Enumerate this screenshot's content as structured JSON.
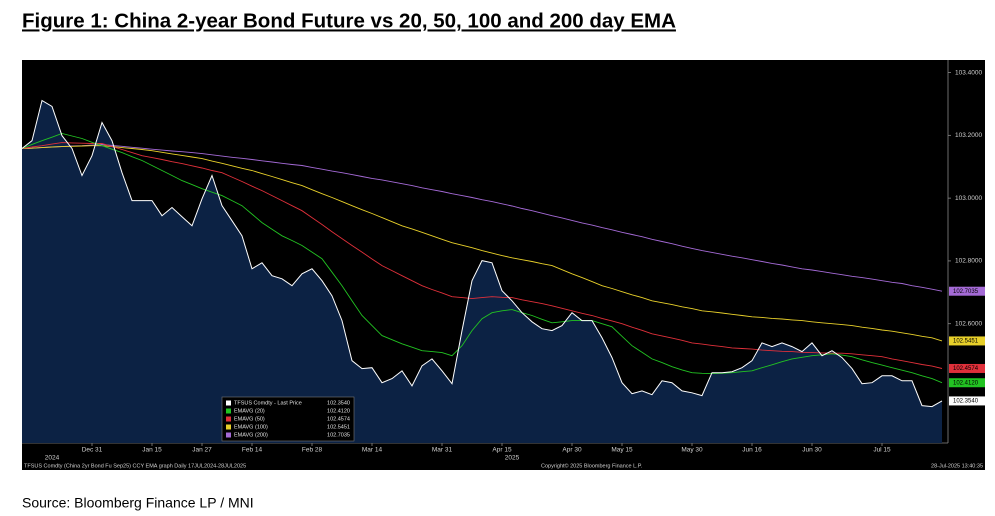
{
  "chart_data": {
    "type": "line",
    "title": "Figure 1:  China 2-year Bond Future vs 20, 50, 100 and 200 day EMA",
    "footer_left": "TFSUS Comdty (China 2yr Bond Fu Sep25) CCY EMA graph  Daily 17JUL2024-28JUL2025",
    "footer_center": "Copyright© 2025 Bloomberg Finance L.P.",
    "footer_right": "28-Jul-2025 13:40:35",
    "source": "Source: Bloomberg Finance LP / MNI",
    "year_labels": [
      "2024",
      "2025"
    ],
    "legend": "lower-left",
    "categories": [
      null,
      null,
      null,
      null,
      null,
      null,
      null,
      "Dec 31",
      null,
      null,
      null,
      null,
      null,
      "Jan 15",
      null,
      null,
      null,
      null,
      "Jan 27",
      null,
      null,
      null,
      null,
      "Feb 14",
      null,
      null,
      null,
      null,
      null,
      "Feb 28",
      null,
      null,
      null,
      null,
      null,
      "Mar 14",
      null,
      null,
      null,
      null,
      null,
      null,
      "Mar 31",
      null,
      null,
      null,
      null,
      null,
      "Apr 15",
      null,
      null,
      null,
      null,
      null,
      null,
      "Apr 30",
      null,
      null,
      null,
      null,
      "May 15",
      null,
      null,
      null,
      null,
      null,
      null,
      "May 30",
      null,
      null,
      null,
      null,
      null,
      "Jun 16",
      null,
      null,
      null,
      null,
      null,
      "Jun 30",
      null,
      null,
      null,
      null,
      null,
      null,
      "Jul 15",
      null,
      null,
      null,
      null,
      null,
      null
    ],
    "series": [
      {
        "name": "TFSUS Comdty - Last Price",
        "color": "#ffffff",
        "last_label": "102.3540",
        "values": [
          103.158,
          103.183,
          103.311,
          103.292,
          103.199,
          103.158,
          103.072,
          103.135,
          103.241,
          103.183,
          103.081,
          102.992,
          102.992,
          102.992,
          102.944,
          102.97,
          102.941,
          102.912,
          102.998,
          103.072,
          102.976,
          102.928,
          102.88,
          102.775,
          102.794,
          102.753,
          102.743,
          102.721,
          102.759,
          102.775,
          102.737,
          102.689,
          102.61,
          102.482,
          102.457,
          102.46,
          102.412,
          102.425,
          102.45,
          102.402,
          102.466,
          102.488,
          102.45,
          102.409,
          102.578,
          102.737,
          102.801,
          102.794,
          102.705,
          102.673,
          102.635,
          102.606,
          102.584,
          102.578,
          102.594,
          102.635,
          102.61,
          102.61,
          102.555,
          102.492,
          102.412,
          102.377,
          102.386,
          102.374,
          102.418,
          102.412,
          102.386,
          102.38,
          102.371,
          102.444,
          102.444,
          102.447,
          102.46,
          102.482,
          102.539,
          102.527,
          102.539,
          102.527,
          102.511,
          102.539,
          102.498,
          102.514,
          102.492,
          102.457,
          102.409,
          102.412,
          102.434,
          102.434,
          102.418,
          102.418,
          102.339,
          102.336,
          102.354
        ]
      },
      {
        "name": "EMAVG (20)",
        "color": "#22c322",
        "last_label": "102.4120",
        "values": [
          103.158,
          103.171,
          103.183,
          103.194,
          103.206,
          103.198,
          103.19,
          103.178,
          103.167,
          103.156,
          103.145,
          103.132,
          103.12,
          103.104,
          103.088,
          103.072,
          103.056,
          103.043,
          103.03,
          103.019,
          103.008,
          102.992,
          102.976,
          102.949,
          102.922,
          102.901,
          102.88,
          102.865,
          102.849,
          102.828,
          102.807,
          102.764,
          102.721,
          102.673,
          102.626,
          102.594,
          102.562,
          102.549,
          102.536,
          102.525,
          102.514,
          102.511,
          102.508,
          102.498,
          102.53,
          102.578,
          102.616,
          102.635,
          102.641,
          102.645,
          102.635,
          102.626,
          102.614,
          102.603,
          102.606,
          102.61,
          102.61,
          102.61,
          102.6,
          102.59,
          102.56,
          102.53,
          102.509,
          102.488,
          102.476,
          102.463,
          102.453,
          102.444,
          102.442,
          102.441,
          102.442,
          102.444,
          102.447,
          102.45,
          102.46,
          102.469,
          102.479,
          102.488,
          102.493,
          102.498,
          102.501,
          102.504,
          102.5,
          102.495,
          102.485,
          102.476,
          102.468,
          102.46,
          102.452,
          102.444,
          102.434,
          102.425,
          102.412
        ]
      },
      {
        "name": "EMAVG (50)",
        "color": "#e0303a",
        "last_label": "102.4574",
        "values": [
          103.158,
          103.163,
          103.167,
          103.172,
          103.177,
          103.176,
          103.175,
          103.174,
          103.174,
          103.164,
          103.155,
          103.145,
          103.135,
          103.129,
          103.123,
          103.116,
          103.11,
          103.103,
          103.096,
          103.088,
          103.081,
          103.067,
          103.053,
          103.038,
          103.024,
          103.008,
          102.992,
          102.976,
          102.96,
          102.938,
          102.916,
          102.893,
          102.871,
          102.849,
          102.828,
          102.806,
          102.785,
          102.769,
          102.753,
          102.737,
          102.721,
          102.709,
          102.698,
          102.686,
          102.683,
          102.68,
          102.683,
          102.686,
          102.684,
          102.683,
          102.676,
          102.67,
          102.664,
          102.657,
          102.649,
          102.641,
          102.633,
          102.626,
          102.617,
          102.609,
          102.6,
          102.589,
          102.579,
          102.568,
          102.561,
          102.554,
          102.547,
          102.539,
          102.535,
          102.531,
          102.527,
          102.523,
          102.521,
          102.519,
          102.516,
          102.514,
          102.512,
          102.511,
          102.509,
          102.508,
          102.507,
          102.506,
          102.506,
          102.504,
          102.501,
          102.498,
          102.495,
          102.488,
          102.482,
          102.476,
          102.47,
          102.465,
          102.4574
        ]
      },
      {
        "name": "EMAVG (100)",
        "color": "#e8d02a",
        "last_label": "102.5451",
        "values": [
          103.158,
          103.159,
          103.161,
          103.163,
          103.164,
          103.165,
          103.166,
          103.167,
          103.167,
          103.164,
          103.161,
          103.158,
          103.155,
          103.151,
          103.146,
          103.141,
          103.136,
          103.131,
          103.126,
          103.118,
          103.111,
          103.103,
          103.095,
          103.088,
          103.078,
          103.069,
          103.059,
          103.049,
          103.04,
          103.027,
          103.014,
          103.002,
          102.989,
          102.976,
          102.963,
          102.951,
          102.938,
          102.925,
          102.912,
          102.902,
          102.891,
          102.88,
          102.869,
          102.858,
          102.85,
          102.842,
          102.833,
          102.825,
          102.817,
          102.81,
          102.804,
          102.798,
          102.791,
          102.785,
          102.772,
          102.759,
          102.747,
          102.734,
          102.721,
          102.712,
          102.702,
          102.692,
          102.683,
          102.673,
          102.667,
          102.661,
          102.654,
          102.648,
          102.641,
          102.638,
          102.634,
          102.63,
          102.626,
          102.622,
          102.62,
          102.617,
          102.615,
          102.612,
          102.61,
          102.606,
          102.603,
          102.6,
          102.597,
          102.594,
          102.589,
          102.585,
          102.58,
          102.576,
          102.571,
          102.566,
          102.56,
          102.555,
          102.5451
        ]
      },
      {
        "name": "EMAVG (200)",
        "color": "#a46ad6",
        "last_label": "102.7035",
        "values": [
          103.158,
          103.159,
          103.161,
          103.163,
          103.164,
          103.166,
          103.167,
          103.169,
          103.171,
          103.168,
          103.165,
          103.162,
          103.159,
          103.156,
          103.153,
          103.15,
          103.148,
          103.145,
          103.142,
          103.138,
          103.134,
          103.13,
          103.127,
          103.123,
          103.119,
          103.115,
          103.111,
          103.107,
          103.104,
          103.098,
          103.092,
          103.086,
          103.081,
          103.075,
          103.069,
          103.063,
          103.058,
          103.052,
          103.046,
          103.04,
          103.033,
          103.027,
          103.021,
          103.014,
          103.008,
          103.002,
          102.995,
          102.989,
          102.982,
          102.975,
          102.967,
          102.96,
          102.952,
          102.944,
          102.937,
          102.929,
          102.921,
          102.914,
          102.906,
          102.899,
          102.891,
          102.884,
          102.877,
          102.869,
          102.862,
          102.855,
          102.847,
          102.84,
          102.833,
          102.827,
          102.821,
          102.815,
          102.81,
          102.804,
          102.798,
          102.792,
          102.787,
          102.781,
          102.775,
          102.771,
          102.766,
          102.761,
          102.756,
          102.751,
          102.747,
          102.742,
          102.737,
          102.732,
          102.728,
          102.721,
          102.716,
          102.71,
          102.7035
        ]
      }
    ],
    "ylim": [
      102.22,
      103.44
    ],
    "yticks": [
      {
        "value": 103.4,
        "label": "103.4000"
      },
      {
        "value": 103.2,
        "label": "103.2000"
      },
      {
        "value": 103.0,
        "label": "103.0000"
      },
      {
        "value": 102.8,
        "label": "102.8000"
      },
      {
        "value": 102.6,
        "label": "102.6000"
      }
    ]
  }
}
